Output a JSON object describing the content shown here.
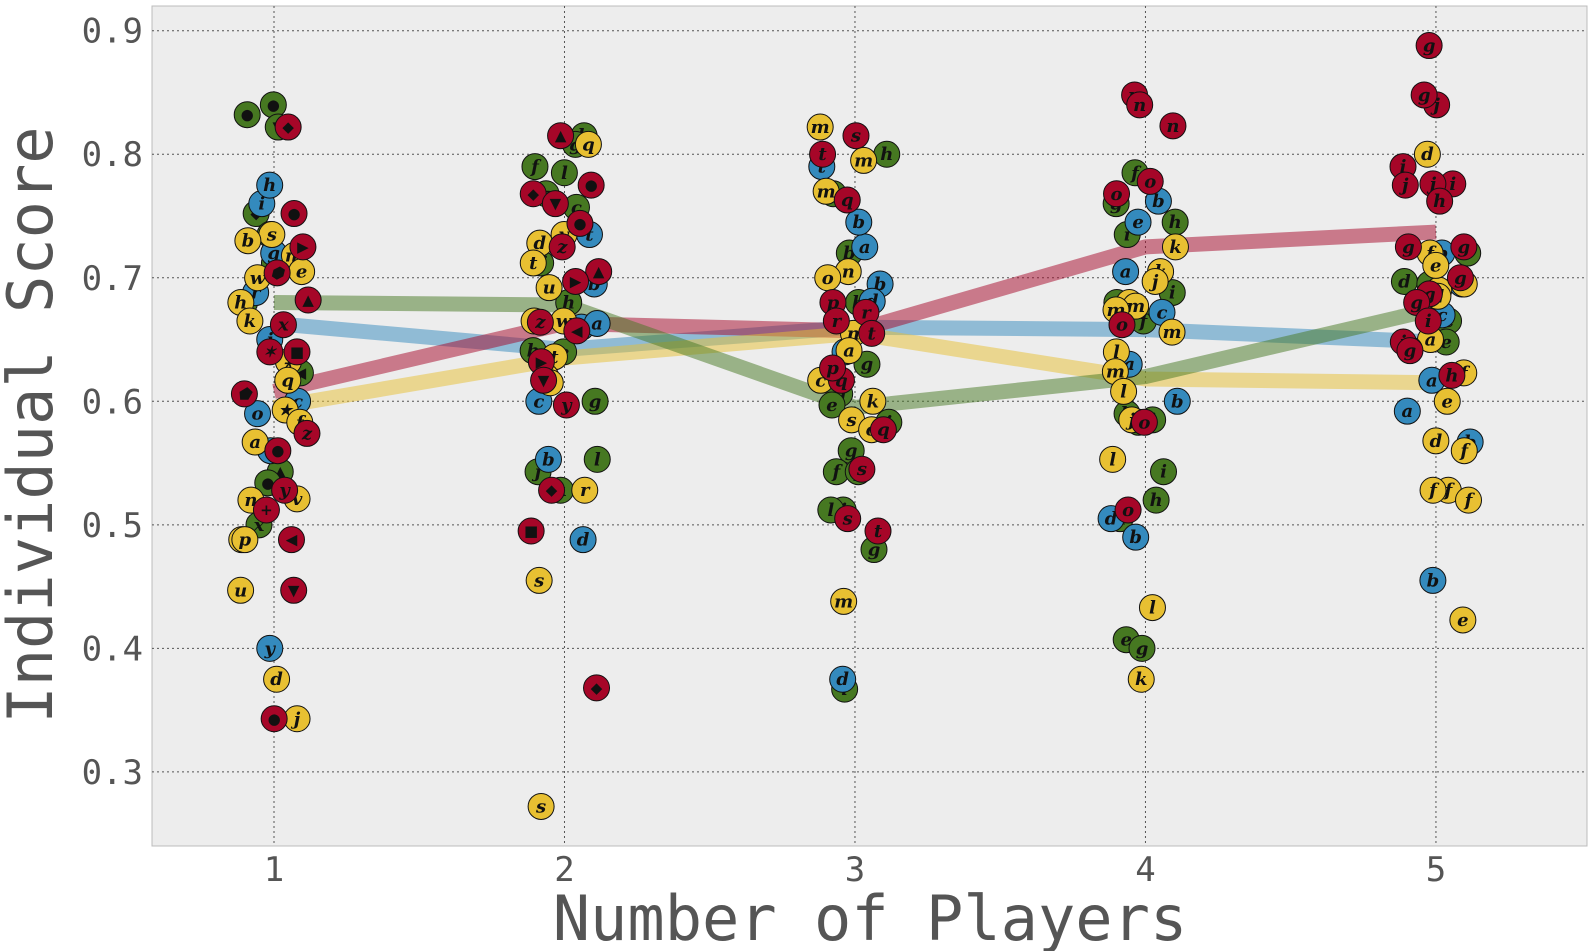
{
  "chart_data": {
    "type": "scatter",
    "title": "",
    "xlabel": "Number of Players",
    "ylabel": "Individual Score",
    "x_ticks": [
      "1",
      "2",
      "3",
      "4",
      "5"
    ],
    "y_ticks": [
      "0.3",
      "0.4",
      "0.5",
      "0.6",
      "0.7",
      "0.8",
      "0.9"
    ],
    "xlim": [
      0.58,
      5.52
    ],
    "ylim": [
      0.24,
      0.92
    ],
    "grid": true,
    "legend": "none",
    "colors": {
      "blue": "#348abd",
      "red": "#a60628",
      "yellow": "#e8c032",
      "green": "#467821",
      "background": "#ededed"
    },
    "series": [
      {
        "color_key": "blue",
        "means": [
          0.663,
          0.642,
          0.66,
          0.658,
          0.648
        ],
        "points": [
          [
            1,
            0.76,
            "i"
          ],
          [
            1,
            0.775,
            "h"
          ],
          [
            1,
            0.72,
            "g"
          ],
          [
            1,
            0.65,
            "j"
          ],
          [
            1,
            0.6,
            "c"
          ],
          [
            1,
            0.56,
            "t"
          ],
          [
            1,
            0.4,
            "y"
          ],
          [
            1,
            0.59,
            "o"
          ],
          [
            1,
            0.688,
            "r"
          ],
          [
            2,
            0.66,
            "e"
          ],
          [
            2,
            0.6,
            "c"
          ],
          [
            2,
            0.553,
            "b"
          ],
          [
            2,
            0.488,
            "d"
          ],
          [
            2,
            0.735,
            "t"
          ],
          [
            2,
            0.663,
            "a"
          ],
          [
            2,
            0.695,
            "b"
          ],
          [
            3,
            0.695,
            "b"
          ],
          [
            3,
            0.681,
            "d"
          ],
          [
            3,
            0.725,
            "a"
          ],
          [
            3,
            0.745,
            "b"
          ],
          [
            3,
            0.79,
            "t"
          ],
          [
            3,
            0.375,
            "d"
          ],
          [
            3,
            0.64,
            "c"
          ],
          [
            4,
            0.705,
            "a"
          ],
          [
            4,
            0.745,
            "e"
          ],
          [
            4,
            0.762,
            "b"
          ],
          [
            4,
            0.672,
            "c"
          ],
          [
            4,
            0.63,
            "a"
          ],
          [
            4,
            0.6,
            "b"
          ],
          [
            4,
            0.505,
            "d"
          ],
          [
            4,
            0.49,
            "b"
          ],
          [
            5,
            0.72,
            "b"
          ],
          [
            5,
            0.617,
            "a"
          ],
          [
            5,
            0.592,
            "a"
          ],
          [
            5,
            0.567,
            "b"
          ],
          [
            5,
            0.455,
            "b"
          ],
          [
            5,
            0.695,
            "b"
          ],
          [
            5,
            0.67,
            "c"
          ]
        ]
      },
      {
        "color_key": "red",
        "means": [
          0.608,
          0.663,
          0.657,
          0.725,
          0.737
        ],
        "points": [
          [
            1,
            0.822,
            "◆"
          ],
          [
            1,
            0.752,
            "●"
          ],
          [
            1,
            0.725,
            "▶"
          ],
          [
            1,
            0.704,
            "⬢"
          ],
          [
            1,
            0.682,
            "▲"
          ],
          [
            1,
            0.662,
            "x"
          ],
          [
            1,
            0.64,
            "■"
          ],
          [
            1,
            0.64,
            "✶"
          ],
          [
            1,
            0.606,
            "⬟"
          ],
          [
            1,
            0.574,
            "z"
          ],
          [
            1,
            0.56,
            "●"
          ],
          [
            1,
            0.528,
            "y"
          ],
          [
            1,
            0.512,
            "+"
          ],
          [
            1,
            0.488,
            "◀"
          ],
          [
            1,
            0.447,
            "▼"
          ],
          [
            1,
            0.343,
            "●"
          ],
          [
            2,
            0.815,
            "▲"
          ],
          [
            2,
            0.775,
            "●"
          ],
          [
            2,
            0.744,
            "●"
          ],
          [
            2,
            0.768,
            "◆"
          ],
          [
            2,
            0.76,
            "▼"
          ],
          [
            2,
            0.725,
            "z"
          ],
          [
            2,
            0.705,
            "▲"
          ],
          [
            2,
            0.697,
            "▶"
          ],
          [
            2,
            0.664,
            "z"
          ],
          [
            2,
            0.657,
            "◀"
          ],
          [
            2,
            0.632,
            "▶"
          ],
          [
            2,
            0.617,
            "▼"
          ],
          [
            2,
            0.597,
            "y"
          ],
          [
            2,
            0.528,
            "◆"
          ],
          [
            2,
            0.495,
            "■"
          ],
          [
            2,
            0.368,
            "◆"
          ],
          [
            3,
            0.815,
            "s"
          ],
          [
            3,
            0.8,
            "t"
          ],
          [
            3,
            0.763,
            "q"
          ],
          [
            3,
            0.68,
            "p"
          ],
          [
            3,
            0.672,
            "r"
          ],
          [
            3,
            0.665,
            "r"
          ],
          [
            3,
            0.655,
            "t"
          ],
          [
            3,
            0.617,
            "q"
          ],
          [
            3,
            0.577,
            "q"
          ],
          [
            3,
            0.545,
            "s"
          ],
          [
            3,
            0.505,
            "s"
          ],
          [
            3,
            0.495,
            "t"
          ],
          [
            3,
            0.627,
            "p"
          ],
          [
            4,
            0.848,
            "n"
          ],
          [
            4,
            0.84,
            "n"
          ],
          [
            4,
            0.823,
            "n"
          ],
          [
            4,
            0.778,
            "o"
          ],
          [
            4,
            0.768,
            "o"
          ],
          [
            4,
            0.662,
            "o"
          ],
          [
            4,
            0.583,
            "o"
          ],
          [
            4,
            0.512,
            "o"
          ],
          [
            5,
            0.888,
            "g"
          ],
          [
            5,
            0.84,
            "j"
          ],
          [
            5,
            0.848,
            "g"
          ],
          [
            5,
            0.79,
            "i"
          ],
          [
            5,
            0.775,
            "j"
          ],
          [
            5,
            0.776,
            "i"
          ],
          [
            5,
            0.776,
            "j"
          ],
          [
            5,
            0.762,
            "h"
          ],
          [
            5,
            0.725,
            "g"
          ],
          [
            5,
            0.725,
            "g"
          ],
          [
            5,
            0.687,
            "g"
          ],
          [
            5,
            0.68,
            "g"
          ],
          [
            5,
            0.665,
            "i"
          ],
          [
            5,
            0.648,
            "i"
          ],
          [
            5,
            0.641,
            "g"
          ],
          [
            5,
            0.621,
            "h"
          ],
          [
            5,
            0.7,
            "g"
          ]
        ]
      },
      {
        "color_key": "yellow",
        "means": [
          0.595,
          0.635,
          0.655,
          0.618,
          0.615
        ],
        "points": [
          [
            1,
            0.735,
            "s"
          ],
          [
            1,
            0.73,
            "b"
          ],
          [
            1,
            0.718,
            "m"
          ],
          [
            1,
            0.705,
            "e"
          ],
          [
            1,
            0.7,
            "w"
          ],
          [
            1,
            0.68,
            "h"
          ],
          [
            1,
            0.665,
            "k"
          ],
          [
            1,
            0.632,
            "⚹"
          ],
          [
            1,
            0.617,
            "q"
          ],
          [
            1,
            0.593,
            "★"
          ],
          [
            1,
            0.583,
            "f"
          ],
          [
            1,
            0.567,
            "a"
          ],
          [
            1,
            0.521,
            "v"
          ],
          [
            1,
            0.52,
            "n"
          ],
          [
            1,
            0.488,
            "i"
          ],
          [
            1,
            0.488,
            "p"
          ],
          [
            1,
            0.447,
            "u"
          ],
          [
            1,
            0.375,
            "d"
          ],
          [
            1,
            0.343,
            "j"
          ],
          [
            2,
            0.808,
            "q"
          ],
          [
            2,
            0.728,
            "d"
          ],
          [
            2,
            0.735,
            "v"
          ],
          [
            2,
            0.712,
            "t"
          ],
          [
            2,
            0.692,
            "u"
          ],
          [
            2,
            0.665,
            "w"
          ],
          [
            2,
            0.665,
            "r"
          ],
          [
            2,
            0.636,
            "t"
          ],
          [
            2,
            0.62,
            "a"
          ],
          [
            2,
            0.615,
            "c"
          ],
          [
            2,
            0.528,
            "r"
          ],
          [
            2,
            0.455,
            "s"
          ],
          [
            2,
            0.272,
            "s"
          ],
          [
            3,
            0.822,
            "m"
          ],
          [
            3,
            0.795,
            "m"
          ],
          [
            3,
            0.77,
            "m"
          ],
          [
            3,
            0.705,
            "n"
          ],
          [
            3,
            0.7,
            "o"
          ],
          [
            3,
            0.655,
            "n"
          ],
          [
            3,
            0.641,
            "a"
          ],
          [
            3,
            0.617,
            "c"
          ],
          [
            3,
            0.6,
            "k"
          ],
          [
            3,
            0.585,
            "s"
          ],
          [
            3,
            0.577,
            "o"
          ],
          [
            3,
            0.438,
            "m"
          ],
          [
            4,
            0.725,
            "k"
          ],
          [
            4,
            0.705,
            "k"
          ],
          [
            4,
            0.697,
            "j"
          ],
          [
            4,
            0.68,
            "m"
          ],
          [
            4,
            0.677,
            "m"
          ],
          [
            4,
            0.674,
            "m"
          ],
          [
            4,
            0.656,
            "m"
          ],
          [
            4,
            0.64,
            "l"
          ],
          [
            4,
            0.624,
            "m"
          ],
          [
            4,
            0.608,
            "l"
          ],
          [
            4,
            0.585,
            "j"
          ],
          [
            4,
            0.553,
            "l"
          ],
          [
            4,
            0.433,
            "l"
          ],
          [
            4,
            0.375,
            "k"
          ],
          [
            5,
            0.8,
            "d"
          ],
          [
            5,
            0.69,
            "e"
          ],
          [
            5,
            0.695,
            "e"
          ],
          [
            5,
            0.685,
            "d"
          ],
          [
            5,
            0.65,
            "a"
          ],
          [
            5,
            0.642,
            "e"
          ],
          [
            5,
            0.623,
            "f"
          ],
          [
            5,
            0.6,
            "e"
          ],
          [
            5,
            0.568,
            "d"
          ],
          [
            5,
            0.56,
            "f"
          ],
          [
            5,
            0.528,
            "f"
          ],
          [
            5,
            0.528,
            "f"
          ],
          [
            5,
            0.52,
            "f"
          ],
          [
            5,
            0.423,
            "e"
          ],
          [
            5,
            0.72,
            "f"
          ],
          [
            5,
            0.71,
            "e"
          ]
        ]
      },
      {
        "color_key": "green",
        "means": [
          0.68,
          0.678,
          0.595,
          0.62,
          0.675
        ],
        "points": [
          [
            1,
            0.84,
            "●"
          ],
          [
            1,
            0.822,
            "▼"
          ],
          [
            1,
            0.832,
            "●"
          ],
          [
            1,
            0.752,
            "◆"
          ],
          [
            1,
            0.735,
            "d"
          ],
          [
            1,
            0.712,
            "g"
          ],
          [
            1,
            0.68,
            "z"
          ],
          [
            1,
            0.623,
            "◀"
          ],
          [
            1,
            0.543,
            "▲"
          ],
          [
            1,
            0.534,
            "●"
          ],
          [
            1,
            0.5,
            "x"
          ],
          [
            2,
            0.815,
            "b"
          ],
          [
            2,
            0.808,
            "g"
          ],
          [
            2,
            0.79,
            "f"
          ],
          [
            2,
            0.785,
            "l"
          ],
          [
            2,
            0.768,
            "a"
          ],
          [
            2,
            0.757,
            "c"
          ],
          [
            2,
            0.712,
            "f"
          ],
          [
            2,
            0.68,
            "h"
          ],
          [
            2,
            0.64,
            "e"
          ],
          [
            2,
            0.632,
            "i"
          ],
          [
            2,
            0.641,
            "h"
          ],
          [
            2,
            0.6,
            "g"
          ],
          [
            2,
            0.553,
            "l"
          ],
          [
            2,
            0.543,
            "j"
          ],
          [
            2,
            0.528,
            "k"
          ],
          [
            3,
            0.8,
            "h"
          ],
          [
            3,
            0.768,
            "j"
          ],
          [
            3,
            0.72,
            "b"
          ],
          [
            3,
            0.68,
            "h"
          ],
          [
            3,
            0.63,
            "g"
          ],
          [
            3,
            0.606,
            "g"
          ],
          [
            3,
            0.597,
            "e"
          ],
          [
            3,
            0.583,
            "i"
          ],
          [
            3,
            0.56,
            "g"
          ],
          [
            3,
            0.543,
            "f"
          ],
          [
            3,
            0.543,
            "f"
          ],
          [
            3,
            0.512,
            "j"
          ],
          [
            3,
            0.512,
            "l"
          ],
          [
            3,
            0.48,
            "g"
          ],
          [
            3,
            0.367,
            "i"
          ],
          [
            4,
            0.785,
            "f"
          ],
          [
            4,
            0.76,
            "g"
          ],
          [
            4,
            0.745,
            "h"
          ],
          [
            4,
            0.735,
            "i"
          ],
          [
            4,
            0.688,
            "i"
          ],
          [
            4,
            0.665,
            "f"
          ],
          [
            4,
            0.59,
            "h"
          ],
          [
            4,
            0.585,
            "i"
          ],
          [
            4,
            0.583,
            "g"
          ],
          [
            4,
            0.543,
            "i"
          ],
          [
            4,
            0.52,
            "h"
          ],
          [
            4,
            0.505,
            "h"
          ],
          [
            4,
            0.407,
            "e"
          ],
          [
            4,
            0.4,
            "g"
          ],
          [
            4,
            0.68,
            "f"
          ],
          [
            5,
            0.697,
            "d"
          ],
          [
            5,
            0.695,
            "e"
          ],
          [
            5,
            0.665,
            "c"
          ],
          [
            5,
            0.648,
            "e"
          ],
          [
            5,
            0.72,
            "c"
          ]
        ]
      }
    ]
  }
}
